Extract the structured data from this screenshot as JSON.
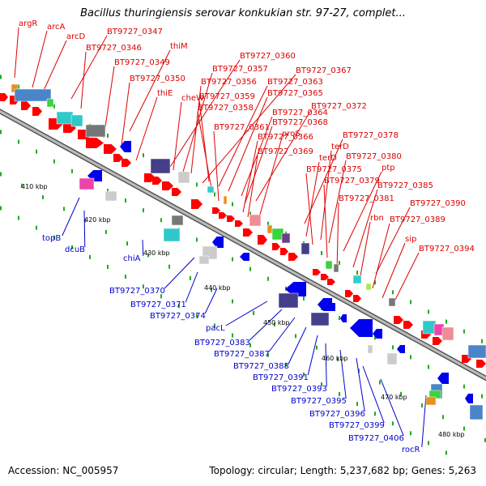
{
  "title": "Bacillus thuringiensis serovar konkukian str. 97-27, complet...",
  "footer": {
    "accession": "Accession: NC_005957",
    "summary": "Topology: circular; Length: 5,237,682 bp; Genes: 5,263"
  },
  "colors": {
    "forward_label": "#dd0000",
    "reverse_label": "#0000cc",
    "forward_gene": "#ff0000",
    "reverse_gene": "#0000ee",
    "backbone": "#888888",
    "tick": "#22aa22"
  },
  "scale_labels": [
    "410 kbp",
    "420 kbp",
    "430 kbp",
    "440 kbp",
    "450 kbp",
    "460 kbp",
    "470 kbp",
    "480 kbp"
  ],
  "forward_labels": [
    "argR",
    "arcA",
    "arcD",
    "BT9727_0347",
    "BT9727_0346",
    "thiM",
    "BT9727_0349",
    "BT9727_0350",
    "thiE",
    "BT9727_0360",
    "BT9727_0357",
    "BT9727_0367",
    "BT9727_0356",
    "BT9727_0363",
    "cheW",
    "BT9727_0359",
    "BT9727_0365",
    "BT9727_0358",
    "BT9727_0372",
    "BT9727_0364",
    "BT9727_0368",
    "BT9727_0361",
    "BT9727_0366",
    "proS",
    "BT9727_0378",
    "BT9727_0369",
    "terD",
    "terD",
    "BT9727_0380",
    "BT9727_0375",
    "ptp",
    "BT9727_0379",
    "BT9727_0385",
    "BT9727_0381",
    "BT9727_0390",
    "rbn",
    "BT9727_0389",
    "sip",
    "BT9727_0394"
  ],
  "reverse_labels": [
    "topB",
    "dcuB",
    "chiA",
    "BT9727_0370",
    "BT9727_0371",
    "BT9727_0374",
    "pacL",
    "BT9727_0383",
    "BT9727_0387",
    "BT9727_0388",
    "BT9727_0391",
    "BT9727_0393",
    "BT9727_0395",
    "BT9727_0396",
    "BT9727_0399",
    "BT9727_0406",
    "rocR"
  ]
}
